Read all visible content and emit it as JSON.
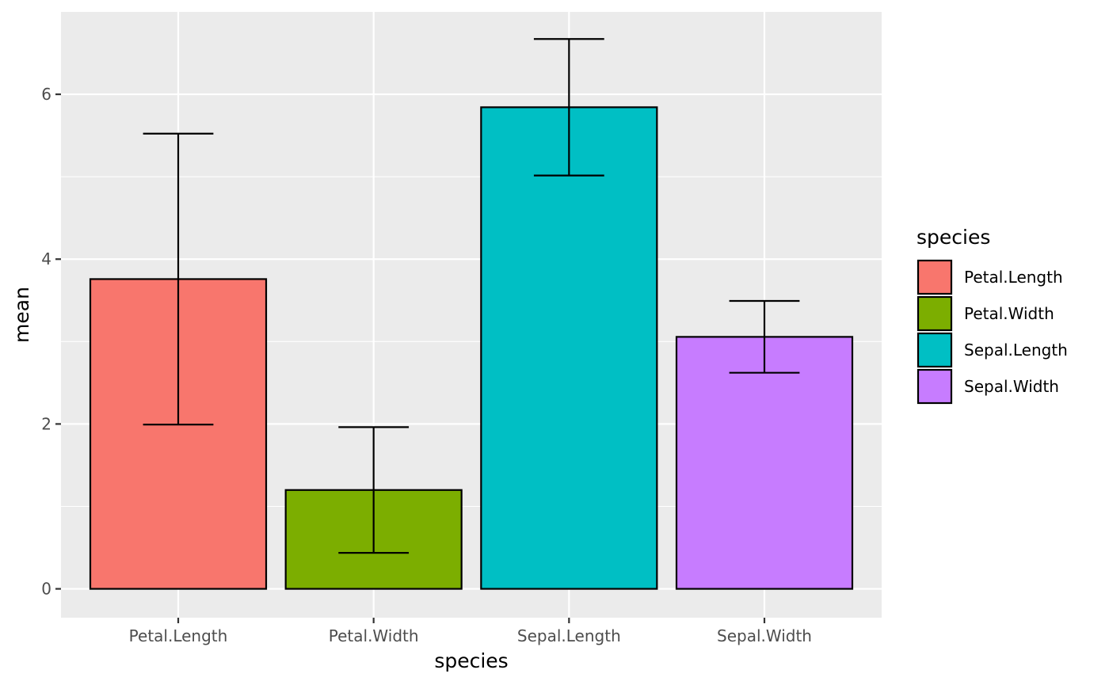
{
  "chart_data": {
    "type": "bar",
    "title": "",
    "xlabel": "species",
    "ylabel": "mean",
    "categories": [
      "Petal.Length",
      "Petal.Width",
      "Sepal.Length",
      "Sepal.Width"
    ],
    "values": [
      3.758,
      1.199,
      5.843,
      3.057
    ],
    "error_low": [
      1.993,
      0.437,
      5.015,
      2.622
    ],
    "error_high": [
      5.523,
      1.962,
      6.671,
      3.493
    ],
    "ylim": [
      -0.35,
      7.0
    ],
    "yticks": [
      0,
      2,
      4,
      6
    ],
    "ytick_labels": [
      "0",
      "2",
      "4",
      "6"
    ],
    "grid": true,
    "legend": {
      "title": "species",
      "position": "right",
      "entries": [
        "Petal.Length",
        "Petal.Width",
        "Sepal.Length",
        "Sepal.Width"
      ]
    },
    "colors": [
      "#F8766D",
      "#7CAE00",
      "#00BFC4",
      "#C77CFF"
    ],
    "panel_background": "#EBEBEB",
    "grid_color": "#FFFFFF"
  }
}
